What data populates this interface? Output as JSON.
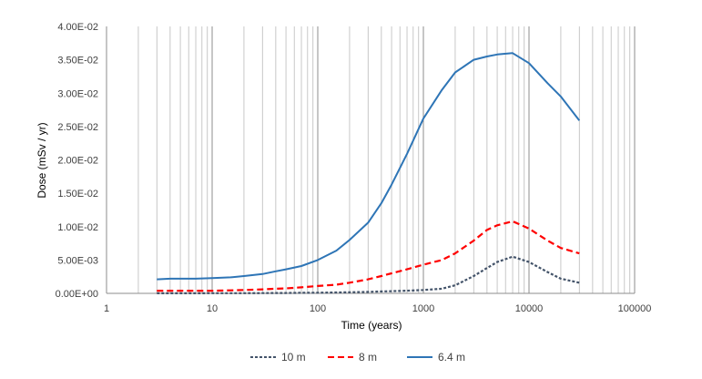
{
  "chart_data": {
    "type": "line",
    "xlabel": "Time (years)",
    "ylabel": "Dose (mSv / yr)",
    "xscale": "log",
    "xlim": [
      1,
      100000
    ],
    "ylim": [
      0,
      0.04
    ],
    "grid": {
      "x_major": true,
      "x_minor": true,
      "y": false
    },
    "legend_position": "bottom",
    "x_tick_labels": [
      "1",
      "10",
      "100",
      "1000",
      "10000",
      "100000"
    ],
    "x_tick_values": [
      1,
      10,
      100,
      1000,
      10000,
      100000
    ],
    "y_tick_labels": [
      "0.00E+00",
      "5.00E-03",
      "1.00E-02",
      "1.50E-02",
      "2.00E-02",
      "2.50E-02",
      "3.00E-02",
      "3.50E-02",
      "4.00E-02"
    ],
    "y_tick_values": [
      0,
      0.005,
      0.01,
      0.015,
      0.02,
      0.025,
      0.03,
      0.035,
      0.04
    ],
    "x": [
      3,
      4,
      5,
      7,
      10,
      15,
      20,
      30,
      40,
      50,
      70,
      100,
      150,
      200,
      300,
      400,
      500,
      700,
      1000,
      1500,
      2000,
      3000,
      4000,
      5000,
      7000,
      10000,
      15000,
      20000,
      30000
    ],
    "series": [
      {
        "name": "10 m",
        "color": "#44546A",
        "dash": "dotted",
        "values": [
          2e-05,
          2e-05,
          2e-05,
          2e-05,
          3e-05,
          3e-05,
          3e-05,
          4e-05,
          5e-05,
          6e-05,
          8e-05,
          0.0001,
          0.00013,
          0.00016,
          0.00022,
          0.00028,
          0.00033,
          0.0004,
          0.0005,
          0.0007,
          0.0012,
          0.0026,
          0.0038,
          0.0047,
          0.0055,
          0.0047,
          0.0032,
          0.0022,
          0.0016
        ]
      },
      {
        "name": "8 m",
        "color": "#FF0000",
        "dash": "dashed",
        "values": [
          0.0004,
          0.0004,
          0.0004,
          0.0004,
          0.0004,
          0.00045,
          0.0005,
          0.0006,
          0.0007,
          0.00075,
          0.0009,
          0.0011,
          0.0013,
          0.0016,
          0.0021,
          0.0026,
          0.003,
          0.0036,
          0.0043,
          0.005,
          0.006,
          0.0079,
          0.0095,
          0.0102,
          0.0108,
          0.0097,
          0.0079,
          0.0068,
          0.006
        ]
      },
      {
        "name": "6.4 m",
        "color": "#2E75B6",
        "dash": "solid",
        "values": [
          0.0021,
          0.0022,
          0.0022,
          0.0022,
          0.0023,
          0.0024,
          0.0026,
          0.0029,
          0.0033,
          0.0036,
          0.0041,
          0.005,
          0.0064,
          0.008,
          0.0106,
          0.0135,
          0.0163,
          0.0209,
          0.0262,
          0.0305,
          0.0331,
          0.035,
          0.0355,
          0.0358,
          0.036,
          0.0345,
          0.0315,
          0.0295,
          0.0259
        ]
      }
    ]
  }
}
